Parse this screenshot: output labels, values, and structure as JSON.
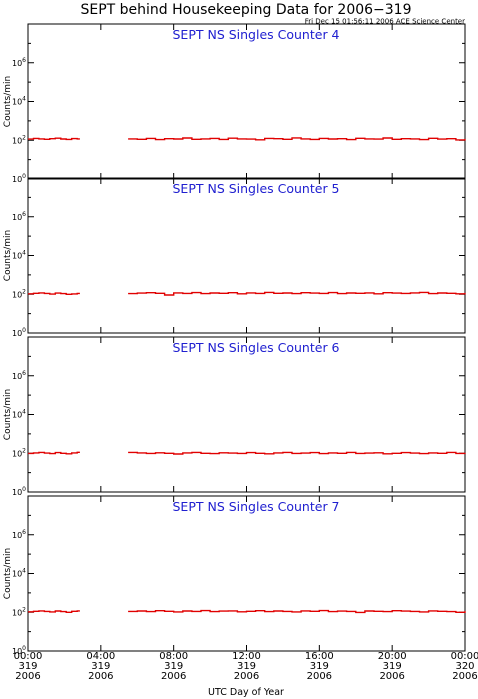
{
  "chart_data": {
    "type": "line",
    "title": "SEPT behind Housekeeping Data for 2006−319",
    "subtitle": "Fri Dec 15 01:56:11 2006 ACE Science Center",
    "xlabel": "UTC Day of Year",
    "x_ticks": [
      {
        "lines": [
          "00:00",
          "319",
          "2006"
        ]
      },
      {
        "lines": [
          "04:00",
          "319",
          "2006"
        ]
      },
      {
        "lines": [
          "08:00",
          "319",
          "2006"
        ]
      },
      {
        "lines": [
          "12:00",
          "319",
          "2006"
        ]
      },
      {
        "lines": [
          "16:00",
          "319",
          "2006"
        ]
      },
      {
        "lines": [
          "20:00",
          "319",
          "2006"
        ]
      },
      {
        "lines": [
          "00:00",
          "320",
          "2006"
        ]
      }
    ],
    "xlim_hours": [
      0,
      24
    ],
    "y_scale": "log",
    "ylim": [
      1,
      100000000
    ],
    "y_tick_exponents": [
      0,
      2,
      4,
      6
    ],
    "line_color": "#e00000",
    "data_gap_hours": [
      2.85,
      5.5
    ],
    "panels": [
      {
        "title": "SEPT NS Singles Counter 4",
        "ylabel": "Counts/min",
        "series_hours": [
          0,
          0.3,
          0.6,
          0.9,
          1.2,
          1.5,
          1.8,
          2.1,
          2.4,
          2.7,
          5.5,
          6,
          6.5,
          7,
          7.5,
          8,
          8.5,
          9,
          9.5,
          10,
          10.5,
          11,
          11.5,
          12,
          12.5,
          13,
          13.5,
          14,
          14.5,
          15,
          15.5,
          16,
          16.5,
          17,
          17.5,
          18,
          18.5,
          19,
          19.5,
          20,
          20.5,
          21,
          21.5,
          22,
          22.5,
          23,
          23.5,
          24
        ],
        "values": [
          115,
          125,
          118,
          112,
          120,
          128,
          116,
          110,
          122,
          118,
          118,
          112,
          125,
          108,
          120,
          116,
          130,
          112,
          118,
          124,
          110,
          128,
          118,
          115,
          106,
          125,
          120,
          112,
          132,
          118,
          110,
          124,
          116,
          120,
          108,
          126,
          118,
          114,
          130,
          112,
          120,
          118,
          108,
          126,
          115,
          120,
          104,
          118
        ]
      },
      {
        "title": "SEPT NS Singles Counter 5",
        "ylabel": "Counts/min",
        "series_hours": [
          0,
          0.3,
          0.6,
          0.9,
          1.2,
          1.5,
          1.8,
          2.1,
          2.4,
          2.7,
          5.5,
          6,
          6.5,
          7,
          7.5,
          8,
          8.5,
          9,
          9.5,
          10,
          10.5,
          11,
          11.5,
          12,
          12.5,
          13,
          13.5,
          14,
          14.5,
          15,
          15.5,
          16,
          16.5,
          17,
          17.5,
          18,
          18.5,
          19,
          19.5,
          20,
          20.5,
          21,
          21.5,
          22,
          22.5,
          23,
          23.5,
          24
        ],
        "values": [
          105,
          112,
          118,
          110,
          102,
          115,
          108,
          100,
          104,
          110,
          108,
          115,
          120,
          112,
          92,
          118,
          110,
          122,
          108,
          116,
          112,
          120,
          106,
          118,
          110,
          124,
          112,
          116,
          108,
          120,
          114,
          110,
          122,
          108,
          116,
          112,
          118,
          106,
          120,
          114,
          110,
          118,
          124,
          108,
          116,
          112,
          106,
          118
        ]
      },
      {
        "title": "SEPT NS Singles Counter 6",
        "ylabel": "Counts/min",
        "series_hours": [
          0,
          0.3,
          0.6,
          0.9,
          1.2,
          1.5,
          1.8,
          2.1,
          2.4,
          2.7,
          5.5,
          6,
          6.5,
          7,
          7.5,
          8,
          8.5,
          9,
          9.5,
          10,
          10.5,
          11,
          11.5,
          12,
          12.5,
          13,
          13.5,
          14,
          14.5,
          15,
          15.5,
          16,
          16.5,
          17,
          17.5,
          18,
          18.5,
          19,
          19.5,
          20,
          20.5,
          21,
          21.5,
          22,
          22.5,
          23,
          23.5,
          24
        ],
        "values": [
          98,
          104,
          110,
          102,
          96,
          108,
          100,
          94,
          104,
          112,
          110,
          104,
          98,
          106,
          100,
          92,
          104,
          110,
          100,
          96,
          106,
          102,
          98,
          108,
          100,
          94,
          104,
          110,
          98,
          102,
          108,
          96,
          104,
          100,
          110,
          98,
          102,
          106,
          94,
          100,
          108,
          102,
          96,
          104,
          100,
          110,
          98,
          104
        ]
      },
      {
        "title": "SEPT NS Singles Counter 7",
        "ylabel": "Counts/min",
        "series_hours": [
          0,
          0.3,
          0.6,
          0.9,
          1.2,
          1.5,
          1.8,
          2.1,
          2.4,
          2.7,
          5.5,
          6,
          6.5,
          7,
          7.5,
          8,
          8.5,
          9,
          9.5,
          10,
          10.5,
          11,
          11.5,
          12,
          12.5,
          13,
          13.5,
          14,
          14.5,
          15,
          15.5,
          16,
          16.5,
          17,
          17.5,
          18,
          18.5,
          19,
          19.5,
          20,
          20.5,
          21,
          21.5,
          22,
          22.5,
          23,
          23.5,
          24
        ],
        "values": [
          105,
          112,
          118,
          110,
          104,
          116,
          108,
          100,
          112,
          118,
          110,
          116,
          108,
          120,
          112,
          104,
          116,
          110,
          122,
          108,
          114,
          118,
          106,
          112,
          120,
          108,
          116,
          110,
          104,
          118,
          112,
          122,
          108,
          114,
          110,
          98,
          116,
          112,
          108,
          120,
          114,
          110,
          104,
          118,
          112,
          108,
          100,
          114
        ]
      }
    ]
  }
}
